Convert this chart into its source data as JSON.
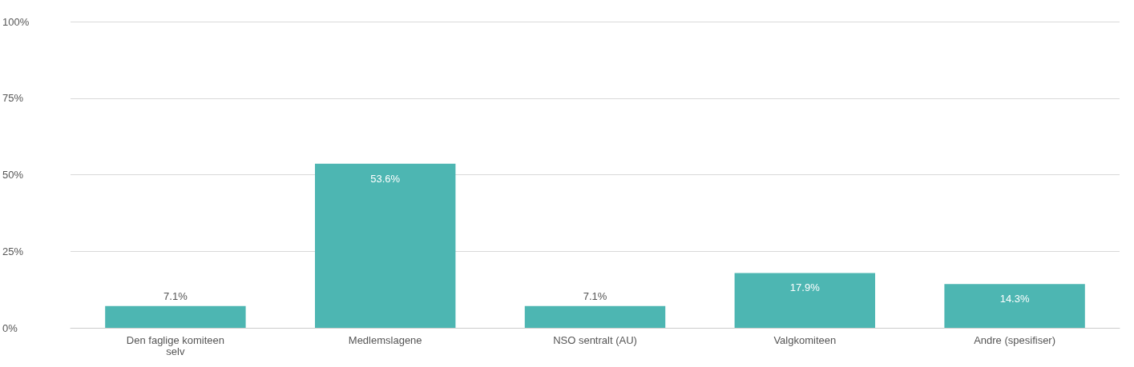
{
  "chart_data": {
    "type": "bar",
    "categories": [
      "Den faglige komiteen selv",
      "Medlemslagene",
      "NSO sentralt (AU)",
      "Valgkomiteen",
      "Andre (spesifiser)"
    ],
    "values": [
      7.1,
      53.6,
      7.1,
      17.9,
      14.3
    ],
    "value_labels": [
      "7.1%",
      "53.6%",
      "7.1%",
      "17.9%",
      "14.3%"
    ],
    "color": "#4db6b2",
    "ylim": [
      0,
      100
    ],
    "yticks": [
      {
        "value": 0,
        "label": "0%"
      },
      {
        "value": 25,
        "label": "25%"
      },
      {
        "value": 50,
        "label": "50%"
      },
      {
        "value": 75,
        "label": "75%"
      },
      {
        "value": 100,
        "label": "100%"
      }
    ],
    "grid": "y"
  }
}
